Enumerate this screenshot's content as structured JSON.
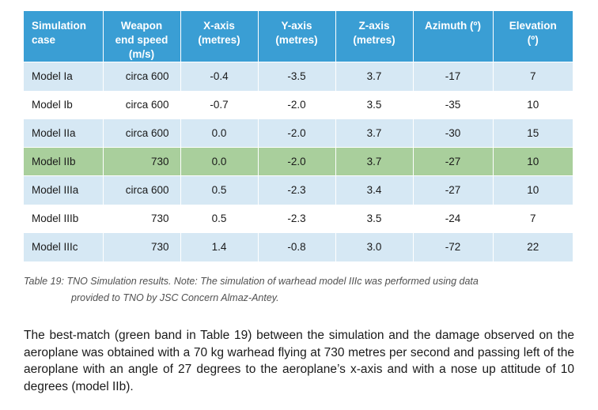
{
  "table": {
    "headers": [
      [
        "Simulation",
        "case"
      ],
      [
        "Weapon",
        "end speed",
        "(m/s)"
      ],
      [
        "X-axis",
        "(metres)"
      ],
      [
        "Y-axis",
        "(metres)"
      ],
      [
        "Z-axis",
        "(metres)"
      ],
      [
        "Azimuth (º)"
      ],
      [
        "Elevation",
        "(º)"
      ]
    ],
    "rows": [
      {
        "band": "blue",
        "cells": [
          "Model Ia",
          "circa 600",
          "-0.4",
          "-3.5",
          "3.7",
          "-17",
          "7"
        ]
      },
      {
        "band": "white",
        "cells": [
          "Model Ib",
          "circa 600",
          "-0.7",
          "-2.0",
          "3.5",
          "-35",
          "10"
        ]
      },
      {
        "band": "blue",
        "cells": [
          "Model IIa",
          "circa 600",
          "0.0",
          "-2.0",
          "3.7",
          "-30",
          "15"
        ]
      },
      {
        "band": "green",
        "cells": [
          "Model IIb",
          "730",
          "0.0",
          "-2.0",
          "3.7",
          "-27",
          "10"
        ]
      },
      {
        "band": "blue",
        "cells": [
          "Model IIIa",
          "circa 600",
          "0.5",
          "-2.3",
          "3.4",
          "-27",
          "10"
        ]
      },
      {
        "band": "white",
        "cells": [
          "Model IIIb",
          "730",
          "0.5",
          "-2.3",
          "3.5",
          "-24",
          "7"
        ]
      },
      {
        "band": "blue",
        "cells": [
          "Model IIIc",
          "730",
          "1.4",
          "-0.8",
          "3.0",
          "-72",
          "22"
        ]
      }
    ],
    "colors": {
      "header": "#3a9ed4",
      "band_blue": "#d6e8f4",
      "band_green": "#a9cf9c"
    }
  },
  "caption": {
    "line1": "Table 19: TNO Simulation results. Note: The simulation of warhead model IIIc was performed using data",
    "line2": "provided to TNO by JSC Concern Almaz-Antey."
  },
  "paragraph": "The best-match (green band in Table 19) between the simulation and the damage observed on the aeroplane was obtained with a 70 kg warhead flying at 730 metres per second and passing left of the aeroplane with an angle of 27 degrees to the aeroplane’s x-axis and with a nose up attitude of 10 degrees (model IIb)."
}
